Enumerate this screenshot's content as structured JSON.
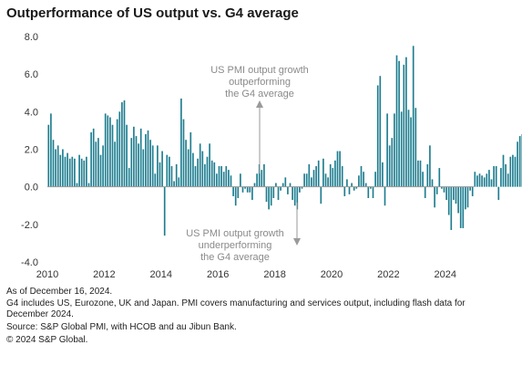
{
  "chart_data": {
    "type": "bar",
    "title": "Outperformance of US output vs. G4 average",
    "color": "#1e7d8f",
    "ylim": [
      -4.0,
      8.0
    ],
    "yticks": [
      "8.0",
      "6.0",
      "4.0",
      "2.0",
      "0.0",
      "-2.0",
      "-4.0"
    ],
    "xticks": [
      "2010",
      "2012",
      "2014",
      "2016",
      "2018",
      "2020",
      "2022",
      "2024"
    ],
    "start": "2010-01",
    "end": "2024-12",
    "values": [
      3.3,
      3.9,
      2.5,
      2.0,
      2.2,
      1.7,
      2.0,
      1.6,
      1.8,
      1.5,
      1.6,
      1.5,
      0.2,
      1.7,
      1.5,
      1.4,
      1.6,
      0.2,
      2.9,
      3.1,
      2.4,
      2.6,
      1.7,
      2.2,
      3.9,
      3.8,
      3.7,
      3.3,
      2.4,
      3.6,
      4.0,
      4.5,
      4.6,
      3.3,
      1.0,
      2.6,
      3.2,
      2.7,
      2.3,
      3.1,
      2.0,
      2.8,
      3.0,
      2.5,
      2.2,
      0.7,
      2.2,
      1.3,
      1.9,
      -2.6,
      1.7,
      1.6,
      1.1,
      0.3,
      1.2,
      0.5,
      4.7,
      3.6,
      2.5,
      2.0,
      2.9,
      1.8,
      1.1,
      1.5,
      2.3,
      1.9,
      1.2,
      1.6,
      2.3,
      1.4,
      1.3,
      0.7,
      1.1,
      1.1,
      0.8,
      1.1,
      0.9,
      0.6,
      -0.5,
      -1.0,
      -0.6,
      0.7,
      -0.3,
      -0.1,
      -0.3,
      -0.3,
      -0.7,
      0.2,
      0.7,
      1.2,
      0.9,
      1.2,
      -0.8,
      -1.2,
      -1.0,
      -0.6,
      0.2,
      -0.7,
      -0.2,
      0.2,
      0.5,
      -0.4,
      0.2,
      -0.7,
      -1.0,
      -1.2,
      -0.3,
      -0.1,
      0.7,
      0.7,
      1.2,
      0.5,
      0.9,
      1.1,
      1.4,
      -0.9,
      1.5,
      0.7,
      0.5,
      1.2,
      1.0,
      1.4,
      1.9,
      1.9,
      1.1,
      -0.5,
      0.4,
      -0.4,
      0.2,
      -0.2,
      -0.1,
      0.6,
      1.1,
      0.8,
      0.2,
      -0.6,
      -0.1,
      -0.6,
      0.8,
      5.4,
      5.9,
      1.3,
      -1.0,
      3.9,
      2.2,
      2.6,
      3.9,
      7.0,
      6.7,
      4.0,
      6.5,
      6.9,
      4.1,
      3.7,
      7.5,
      4.2,
      1.4,
      1.4,
      0.8,
      -0.6,
      1.2,
      2.2,
      0.4,
      -1.1,
      -0.4,
      1.0,
      -0.1,
      -0.3,
      -0.7,
      -1.5,
      -2.3,
      -0.7,
      -0.9,
      -1.4,
      -2.2,
      -2.2,
      -1.2,
      -1.1,
      -0.2,
      -0.5,
      0.8,
      0.6,
      0.7,
      0.6,
      0.5,
      0.7,
      0.9,
      0.4,
      1.1,
      1.1,
      -0.7,
      1.0,
      1.7,
      1.2,
      0.7,
      1.6,
      1.7,
      1.6,
      2.4,
      2.7,
      2.8
    ]
  },
  "annotations": {
    "top_line1": "US PMI output growth",
    "top_line2": "outperforming",
    "top_line3": "the G4 average",
    "bottom_line1": "US PMI output growth",
    "bottom_line2": "underperforming",
    "bottom_line3": "the G4 average"
  },
  "footer": {
    "line1": "As of December 16, 2024.",
    "line2": "G4  includes US, Eurozone, UK and Japan. PMI covers manufacturing and services output, including flash data for",
    "line3": "December 2024.",
    "line4": "Source: S&P Global PMI, with HCOB and au Jibun Bank.",
    "line5": "© 2024 S&P Global."
  },
  "colors": {
    "bar": "#1e7d8f",
    "axis": "#9a9a9a",
    "annotation": "#8a8a8a"
  }
}
